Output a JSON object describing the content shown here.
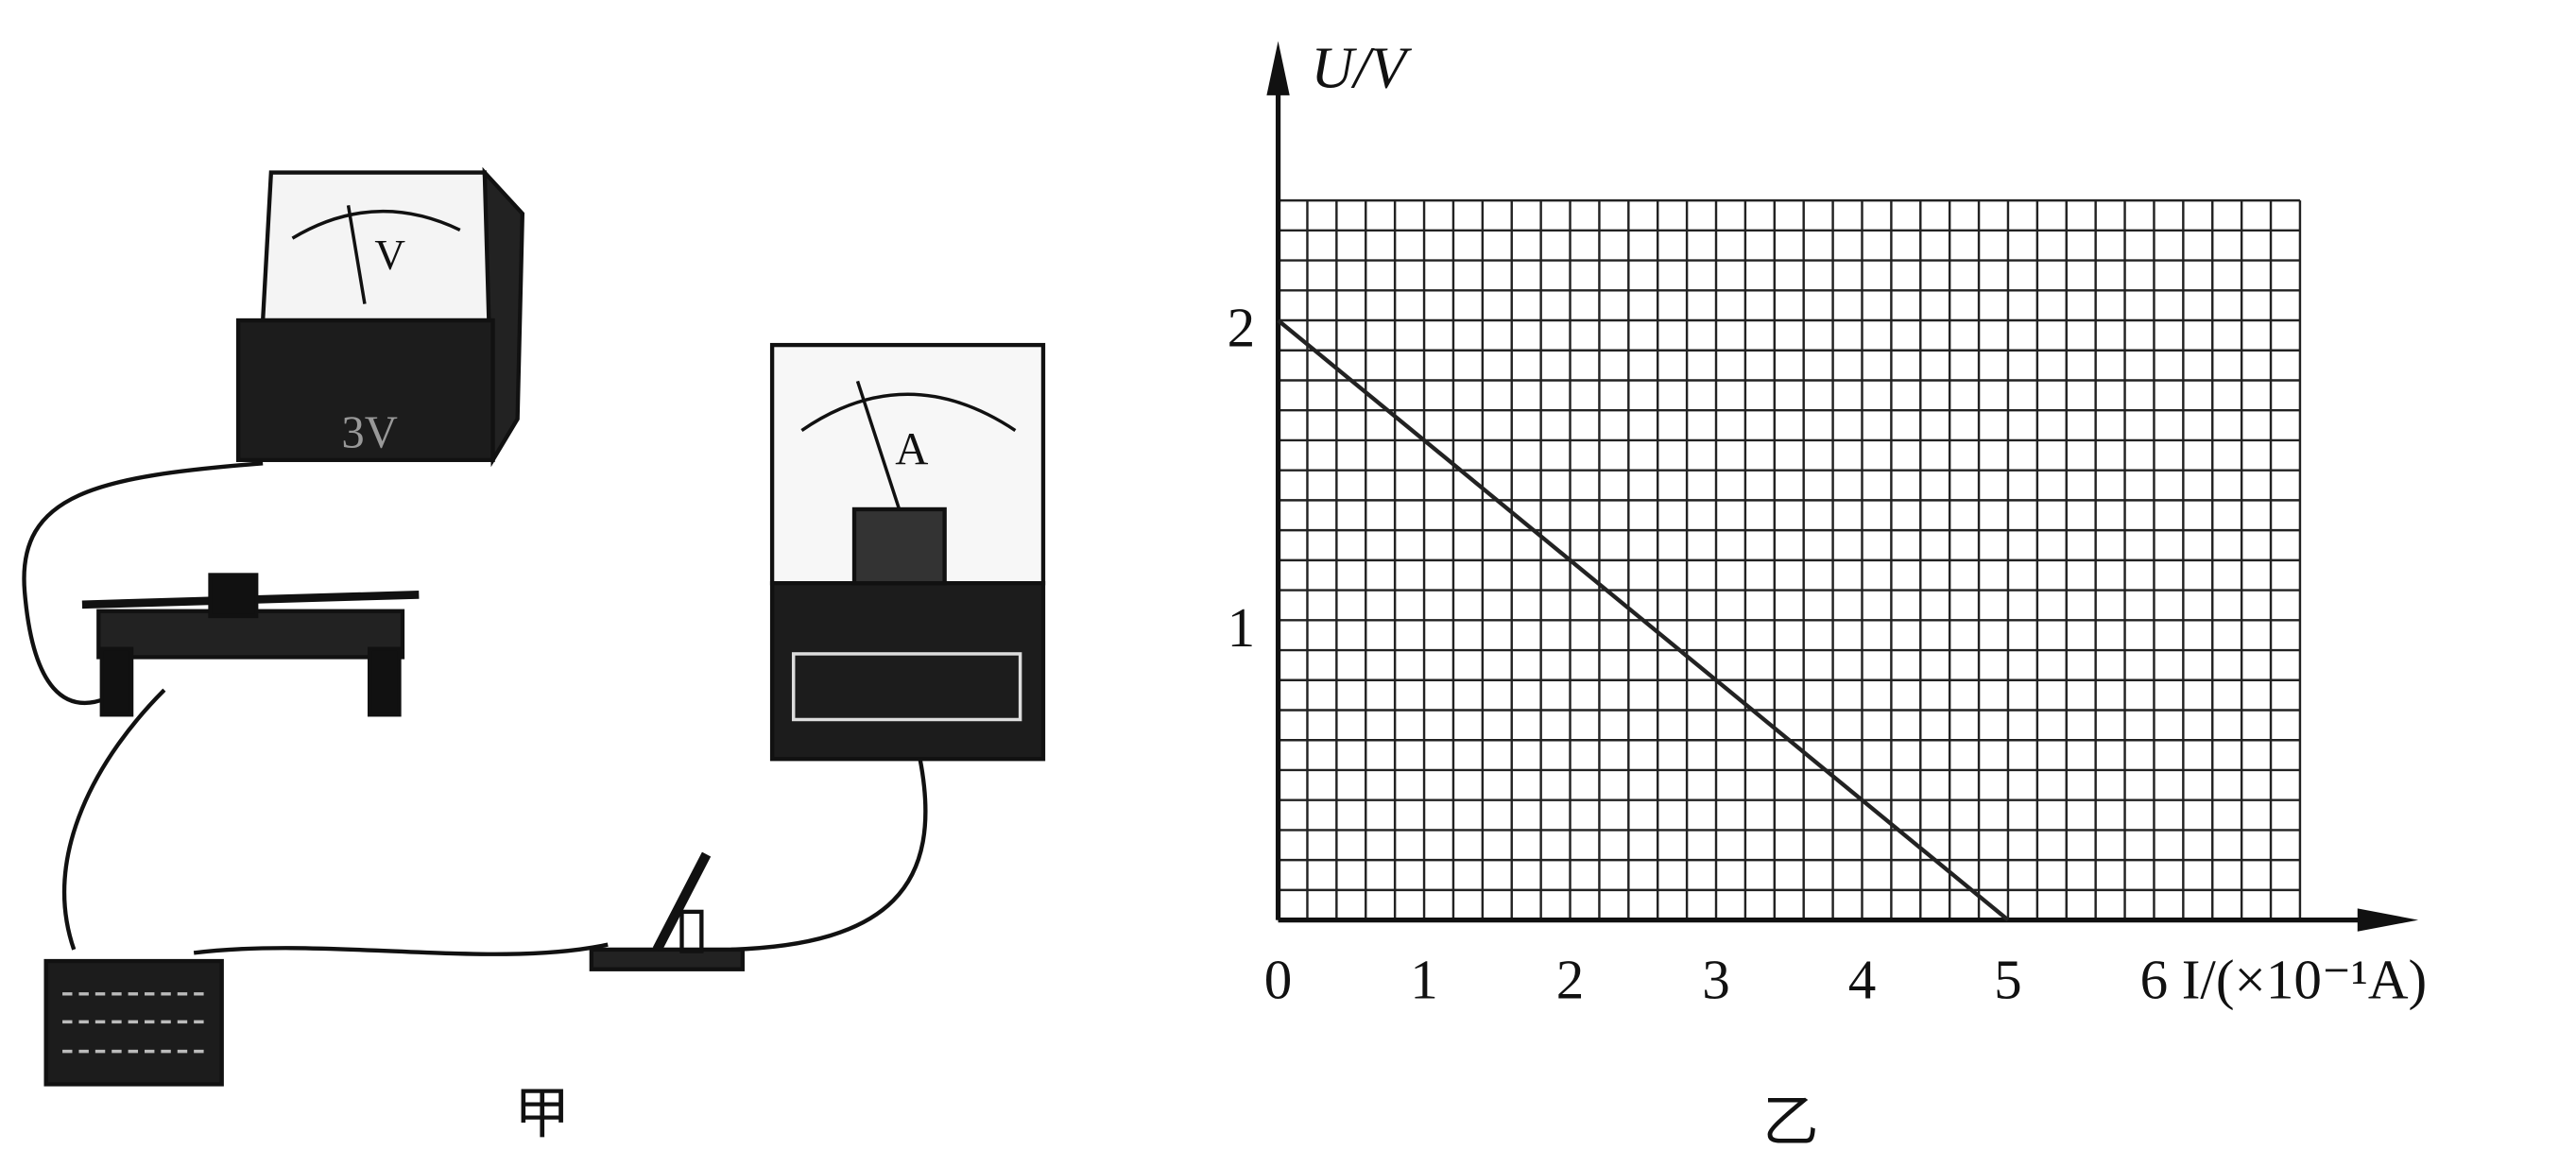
{
  "diagram": {
    "voltmeter_label": "V",
    "voltmeter_range": "3V",
    "ammeter_label": "A",
    "left_caption": "甲",
    "right_caption": "乙"
  },
  "chart_data": {
    "type": "line",
    "xlabel": "I/(×10⁻¹A)",
    "ylabel": "U/V",
    "x": [
      0,
      5
    ],
    "values": [
      2.0,
      0
    ],
    "color": "#222",
    "xlim": [
      0,
      7
    ],
    "ylim": [
      0,
      2.4
    ],
    "xticks": [
      0,
      1,
      2,
      3,
      4,
      5,
      6
    ],
    "yticks": [
      1,
      2
    ],
    "grid": true
  }
}
